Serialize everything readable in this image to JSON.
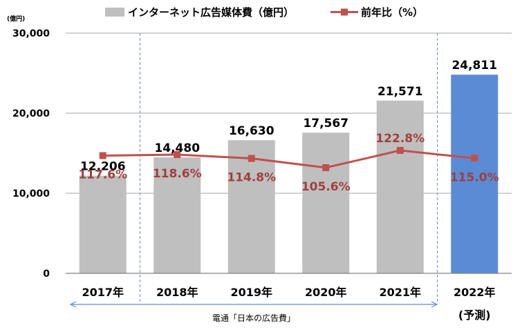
{
  "chart_data": {
    "type": "bar",
    "unit_label": "(億円)",
    "categories": [
      "2017年",
      "2018年",
      "2019年",
      "2020年",
      "2021年",
      "2022年"
    ],
    "forecast_note": "(予測)",
    "series": [
      {
        "name": "インターネット広告媒体費（億円）",
        "kind": "bar",
        "values": [
          12206,
          14480,
          16630,
          17567,
          21571,
          24811
        ],
        "value_labels": [
          "12,206",
          "14,480",
          "16,630",
          "17,567",
          "21,571",
          "24,811"
        ],
        "color": "#BFBFBF",
        "forecast_color": "#5B8BD4"
      },
      {
        "name": "前年比（%）",
        "kind": "line",
        "values": [
          117.6,
          118.6,
          114.8,
          105.6,
          122.8,
          115.0
        ],
        "value_labels": [
          "117.6%",
          "118.6%",
          "114.8%",
          "105.6%",
          "122.8%",
          "115.0%"
        ],
        "color": "#C0504D"
      }
    ],
    "yaxis": {
      "ylim": [
        0,
        30000
      ],
      "ticks": [
        0,
        10000,
        20000,
        30000
      ],
      "tick_labels": [
        "0",
        "10,000",
        "20,000",
        "30,000"
      ]
    },
    "line_axis_range": [
      0,
      240
    ],
    "grid": true,
    "legend_position": "top",
    "source": "電通「日本の広告費」"
  }
}
